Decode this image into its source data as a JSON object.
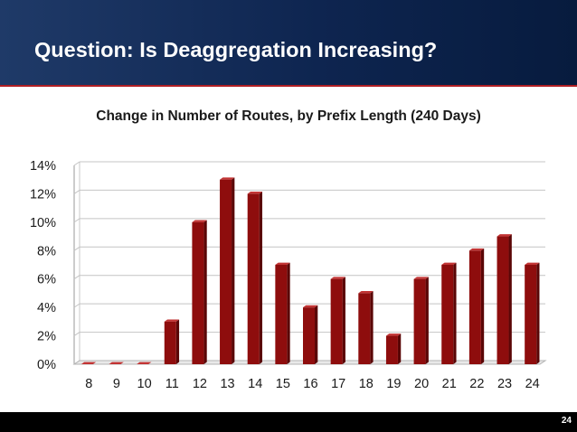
{
  "slide": {
    "title": "Question: Is Deaggregation Increasing?",
    "page_number": "24"
  },
  "colors": {
    "header_bg": "#0e2550",
    "accent_rule": "#b01e23",
    "bar_fill": "#8e0d0d"
  },
  "chart_data": {
    "type": "bar",
    "title": "Change in Number of Routes, by Prefix Length (240 Days)",
    "xlabel": "",
    "ylabel": "",
    "categories": [
      "8",
      "9",
      "10",
      "11",
      "12",
      "13",
      "14",
      "15",
      "16",
      "17",
      "18",
      "19",
      "20",
      "21",
      "22",
      "23",
      "24"
    ],
    "values": [
      0,
      0,
      0,
      3,
      10,
      13,
      12,
      7,
      4,
      6,
      5,
      2,
      6,
      7,
      8,
      9,
      7
    ],
    "unit": "%",
    "ylim": [
      0,
      14
    ],
    "yticks": [
      "0%",
      "2%",
      "4%",
      "6%",
      "8%",
      "10%",
      "12%",
      "14%"
    ],
    "ytick_values": [
      0,
      2,
      4,
      6,
      8,
      10,
      12,
      14
    ],
    "grid": true,
    "legend": "none"
  }
}
